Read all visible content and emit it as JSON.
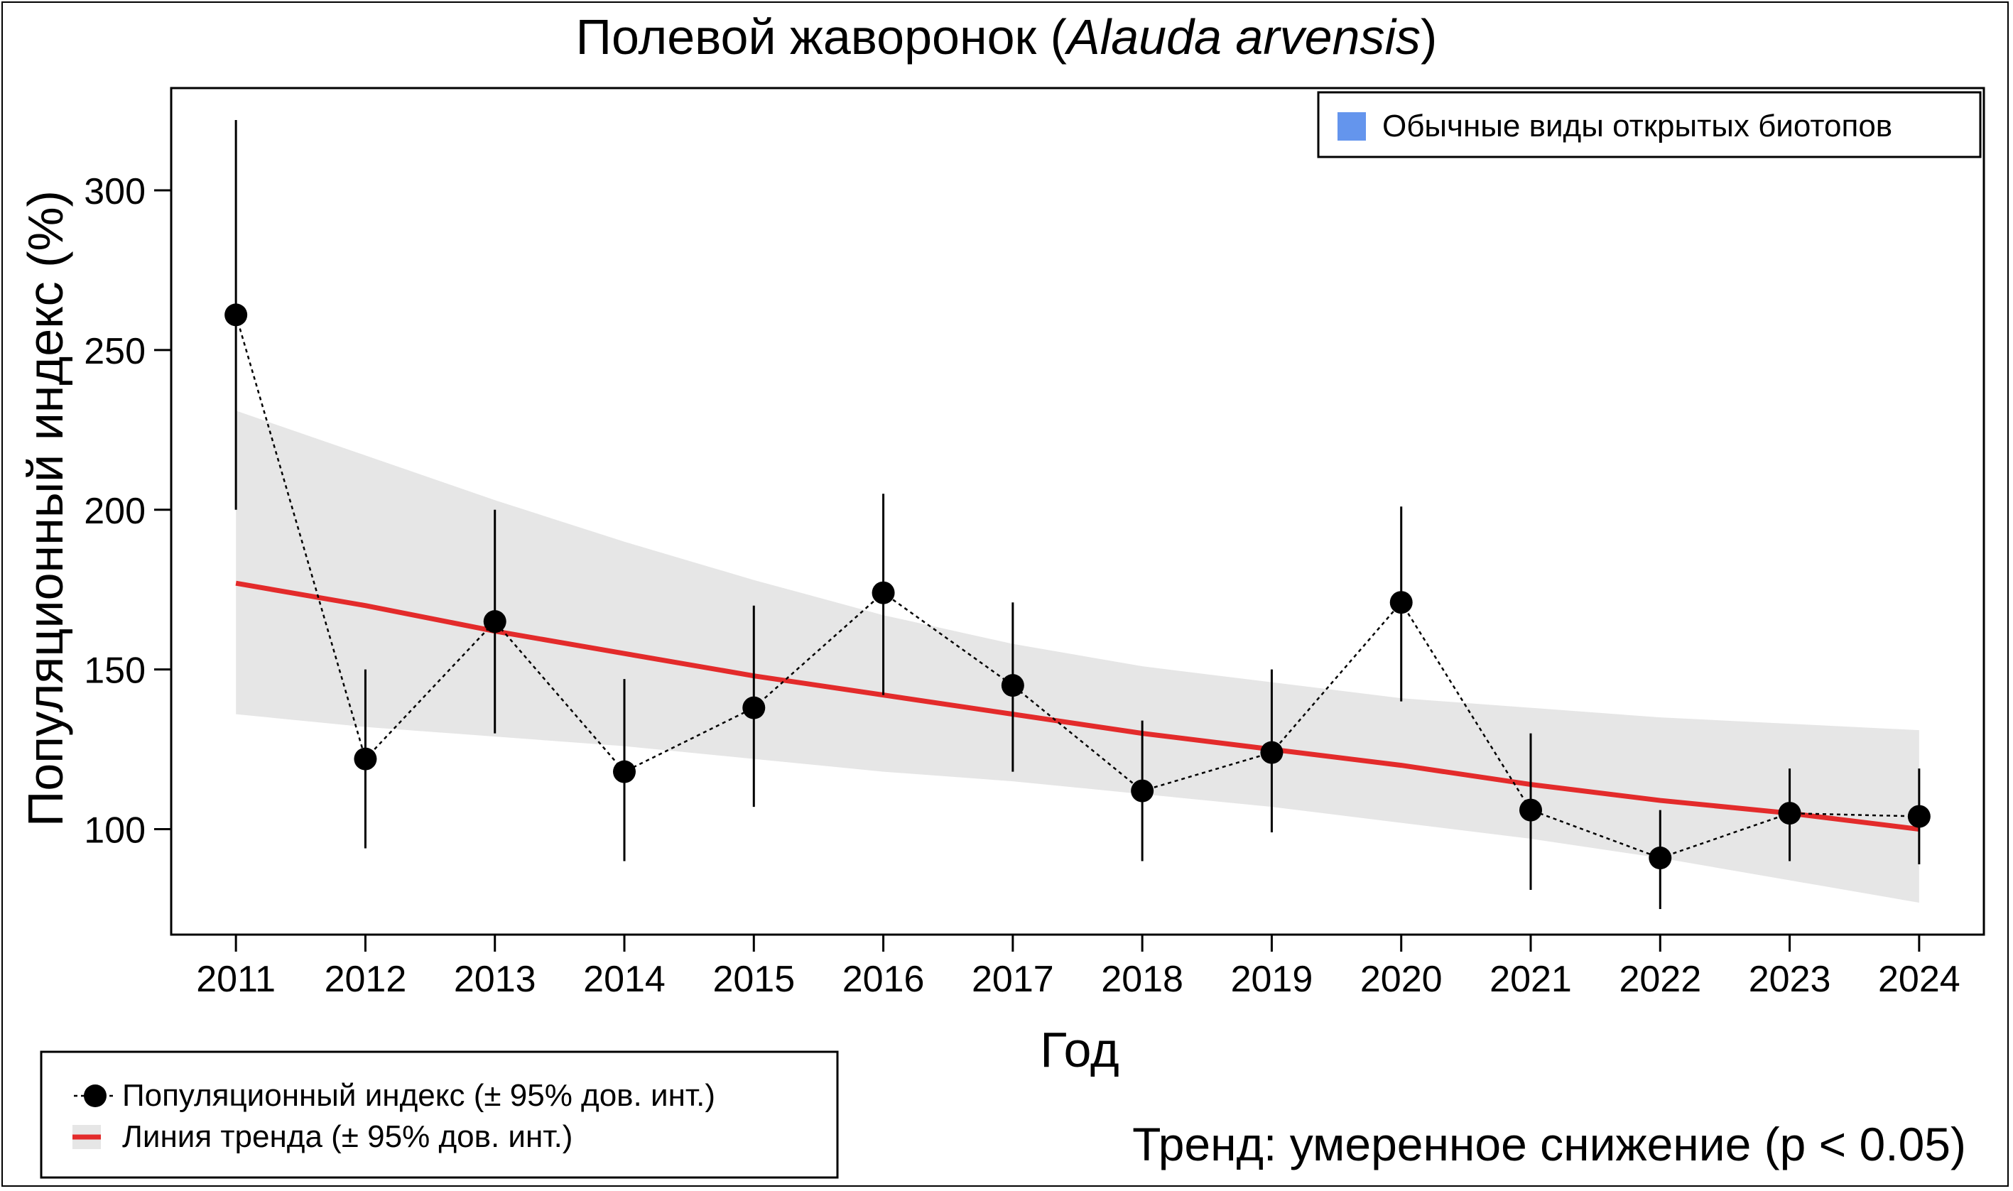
{
  "chart_data": {
    "type": "line",
    "title": {
      "prefix": "Полевой жаворонок (",
      "latin": "Alauda arvensis",
      "suffix": ")"
    },
    "xlabel": "Год",
    "ylabel": "Популяционный индекс (%)",
    "x": [
      2011,
      2012,
      2013,
      2014,
      2015,
      2016,
      2017,
      2018,
      2019,
      2020,
      2021,
      2022,
      2023,
      2024
    ],
    "xticks": [
      "2011",
      "2012",
      "2013",
      "2014",
      "2015",
      "2016",
      "2017",
      "2018",
      "2019",
      "2020",
      "2021",
      "2022",
      "2023",
      "2024"
    ],
    "yticks": [
      100,
      150,
      200,
      250,
      300
    ],
    "ylim": [
      67,
      332
    ],
    "xlim": [
      2010.5,
      2024.5
    ],
    "series": [
      {
        "name": "Популяционный индекс (± 95% дов. инт.)",
        "values": [
          261,
          122,
          165,
          118,
          138,
          174,
          145,
          112,
          124,
          171,
          106,
          91,
          105,
          104
        ],
        "ci_lower": [
          200,
          94,
          130,
          90,
          107,
          142,
          118,
          90,
          99,
          140,
          81,
          75,
          90,
          89
        ],
        "ci_upper": [
          322,
          150,
          200,
          147,
          170,
          205,
          171,
          134,
          150,
          201,
          130,
          106,
          119,
          119
        ],
        "color": "#000000"
      },
      {
        "name": "Линия тренда (± 95% дов. инт.)",
        "values": [
          177,
          170,
          162,
          155,
          148,
          142,
          136,
          130,
          125,
          120,
          114,
          109,
          105,
          100
        ],
        "ci_lower": [
          136,
          132,
          129,
          126,
          122,
          118,
          115,
          111,
          107,
          102,
          97,
          91,
          84,
          77
        ],
        "ci_upper": [
          231,
          217,
          203,
          190,
          178,
          167,
          158,
          151,
          146,
          141,
          138,
          135,
          133,
          131
        ],
        "color": "#e32b2b",
        "band_color": "#e6e6e6"
      }
    ],
    "legend_top": {
      "label": "Обычные виды открытых биотопов",
      "color": "#6495ed",
      "position": "top-right"
    },
    "legend_bottom": {
      "items": [
        "Популяционный индекс (± 95% дов. инт.)",
        "Линия тренда (± 95% дов. инт.)"
      ],
      "position": "bottom-left"
    },
    "trend_text": "Тренд: умеренное снижение (p < 0.05)",
    "trend_color": "#e8000b"
  }
}
